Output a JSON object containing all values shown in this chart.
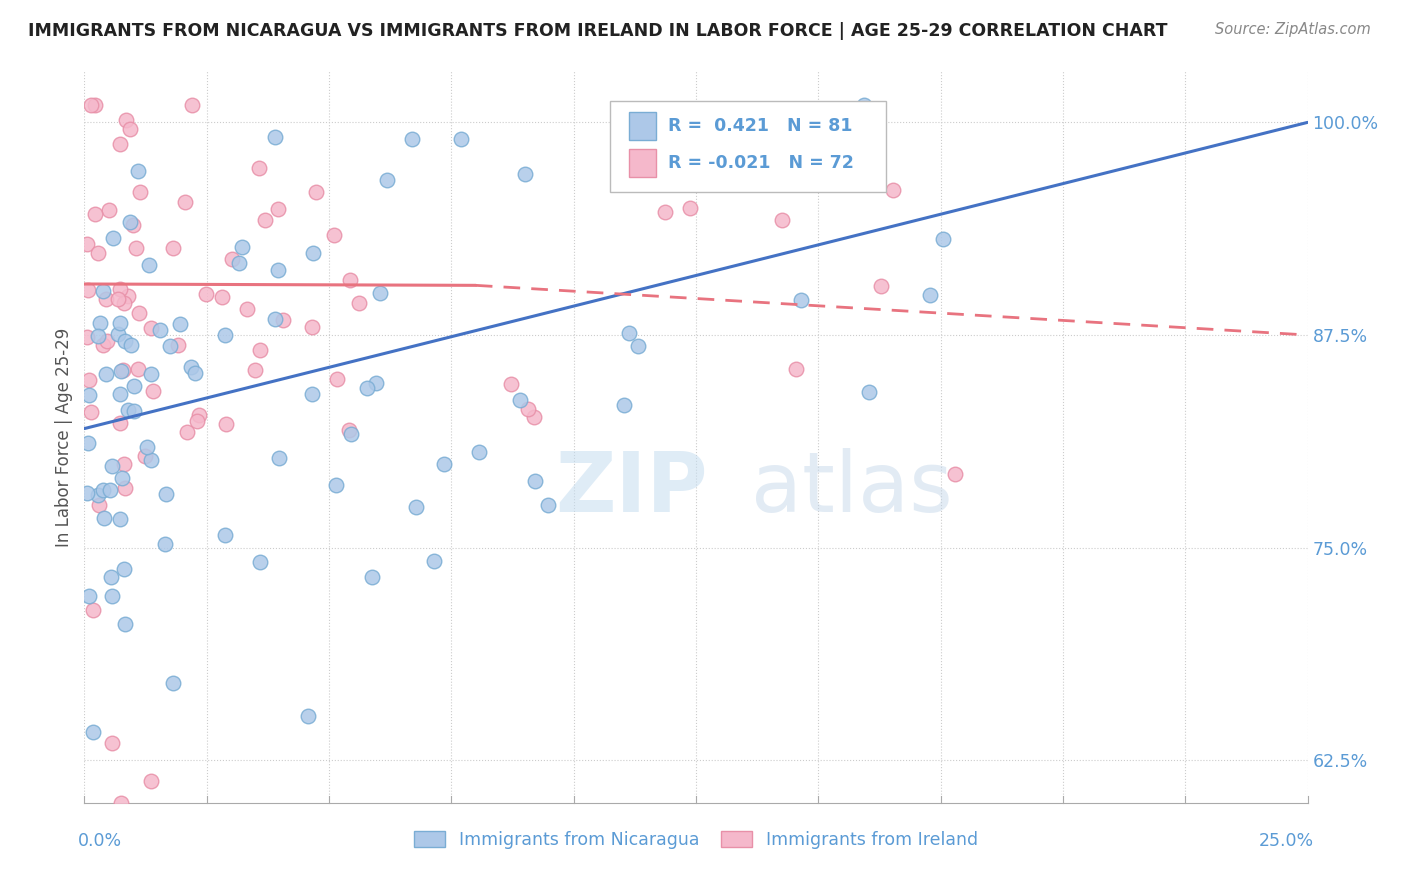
{
  "title": "IMMIGRANTS FROM NICARAGUA VS IMMIGRANTS FROM IRELAND IN LABOR FORCE | AGE 25-29 CORRELATION CHART",
  "source": "Source: ZipAtlas.com",
  "ylabel": "In Labor Force | Age 25-29",
  "yticks": [
    62.5,
    75.0,
    87.5,
    100.0
  ],
  "ytick_labels": [
    "62.5%",
    "75.0%",
    "87.5%",
    "100.0%"
  ],
  "xlim": [
    0.0,
    25.0
  ],
  "ylim": [
    60.0,
    103.0
  ],
  "nicaragua_color": "#adc8e8",
  "ireland_color": "#f5b8cb",
  "nicaragua_edge": "#7aadd4",
  "ireland_edge": "#e890a8",
  "trend_nicaragua_color": "#4472c4",
  "trend_ireland_color": "#e8737f",
  "legend_label_nicaragua": "Immigrants from Nicaragua",
  "legend_label_ireland": "Immigrants from Ireland",
  "watermark_zip": "ZIP",
  "watermark_atlas": "atlas",
  "background_color": "#ffffff",
  "tick_color": "#5b9bd5",
  "grid_color": "#cccccc",
  "title_color": "#222222",
  "source_color": "#888888",
  "ylabel_color": "#555555"
}
